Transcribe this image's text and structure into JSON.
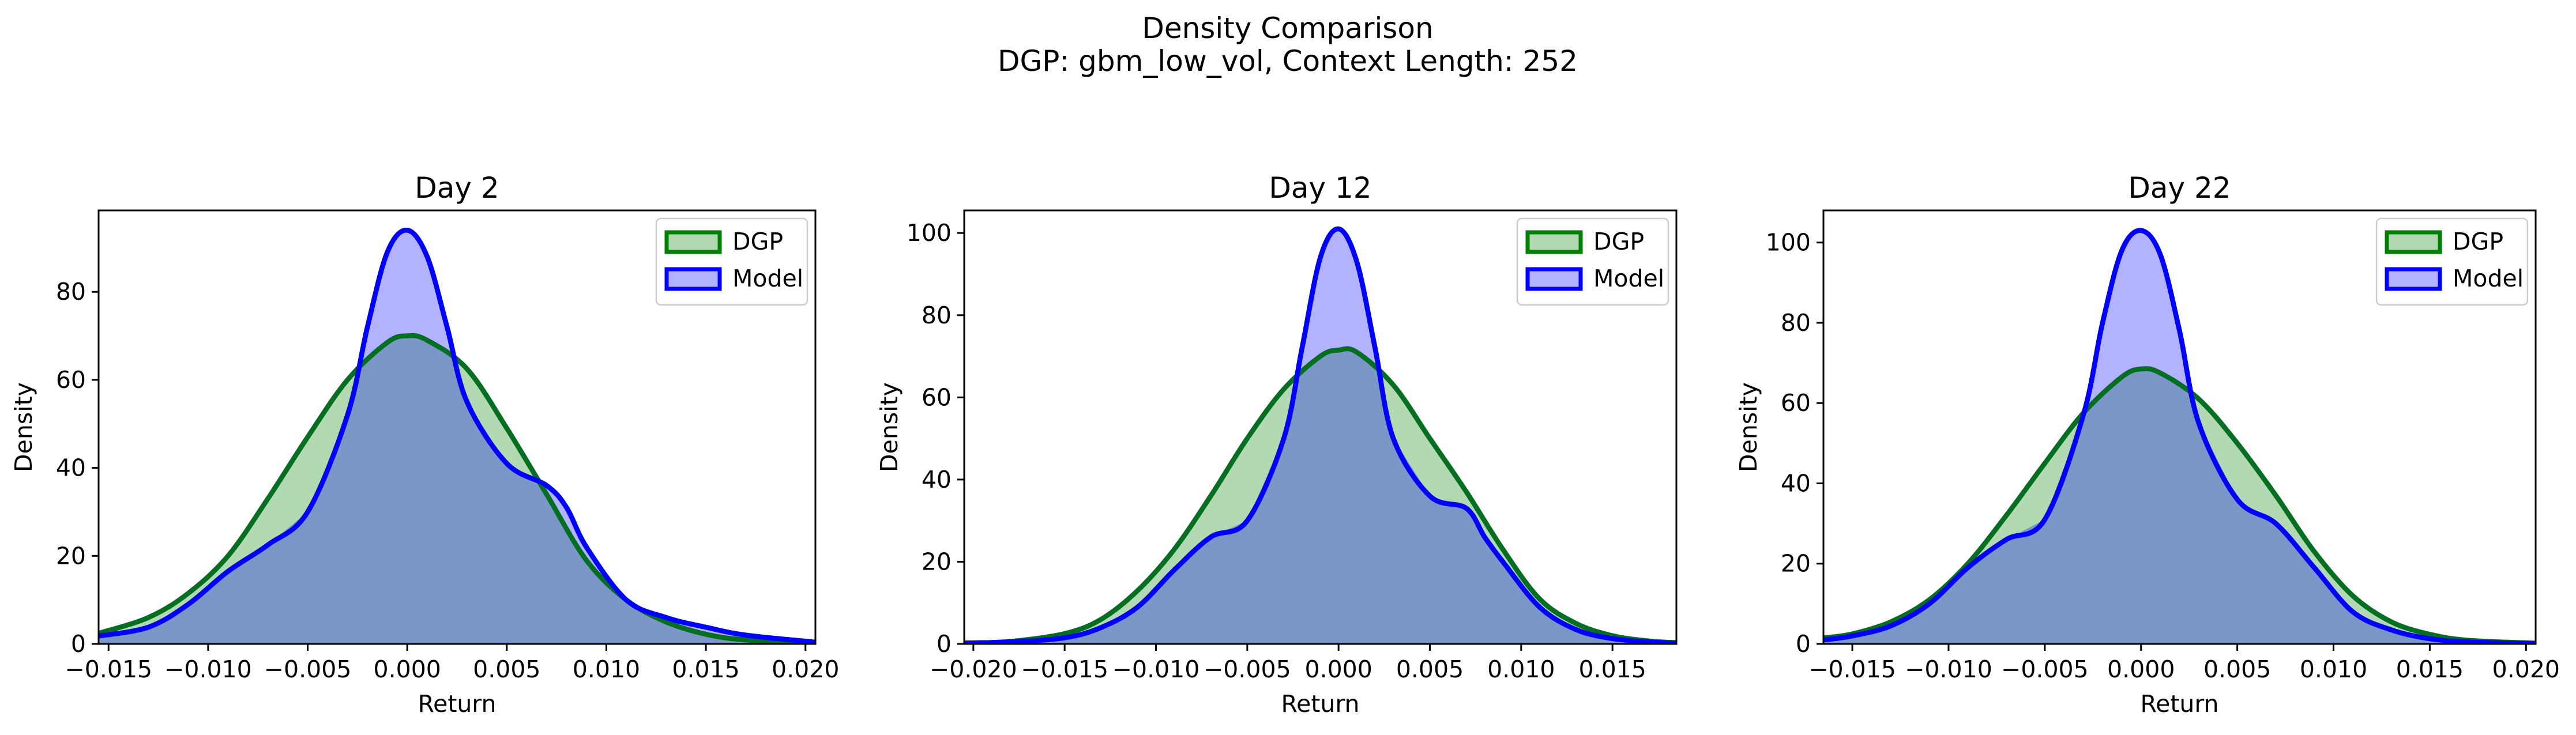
{
  "figure": {
    "suptitle_line1": "Density Comparison",
    "suptitle_line2": "DGP: gbm_low_vol, Context Length: 252"
  },
  "colors": {
    "dgp": "#008000",
    "model": "#0000ff",
    "overlap": "#7b97c7"
  },
  "chart_data": [
    {
      "type": "area",
      "title": "Day 2",
      "xlabel": "Return",
      "ylabel": "Density",
      "xlim": [
        -0.0155,
        0.0205
      ],
      "ylim": [
        0,
        98.5
      ],
      "xticks": [
        -0.015,
        -0.01,
        -0.005,
        0.0,
        0.005,
        0.01,
        0.015,
        0.02
      ],
      "xtick_labels": [
        "−0.015",
        "−0.010",
        "−0.005",
        "0.000",
        "0.005",
        "0.010",
        "0.015",
        "0.020"
      ],
      "yticks": [
        0,
        20,
        40,
        60,
        80
      ],
      "legend_position": "upper right",
      "series": [
        {
          "name": "DGP",
          "color": "#008000",
          "x": [
            -0.0155,
            -0.013,
            -0.011,
            -0.009,
            -0.007,
            -0.005,
            -0.003,
            -0.001,
            0.0,
            0.001,
            0.003,
            0.005,
            0.007,
            0.009,
            0.011,
            0.013,
            0.015,
            0.017,
            0.0205
          ],
          "y": [
            2.4,
            6,
            11.5,
            20,
            33,
            47,
            60,
            68.5,
            70,
            69,
            62.5,
            49,
            34,
            19,
            10,
            5,
            2.2,
            0.9,
            0.1
          ]
        },
        {
          "name": "Model",
          "color": "#0000ff",
          "x": [
            -0.0155,
            -0.013,
            -0.011,
            -0.009,
            -0.007,
            -0.005,
            -0.003,
            -0.002,
            -0.001,
            0.0,
            0.001,
            0.002,
            0.003,
            0.005,
            0.007,
            0.008,
            0.009,
            0.011,
            0.013,
            0.015,
            0.017,
            0.0205
          ],
          "y": [
            1.8,
            3.8,
            9,
            16.5,
            22.5,
            30,
            52,
            72,
            89,
            94,
            88,
            72,
            55,
            41,
            36,
            31,
            22,
            10,
            6,
            3.8,
            2,
            0.4
          ]
        }
      ]
    },
    {
      "type": "area",
      "title": "Day 12",
      "xlabel": "Return",
      "ylabel": "Density",
      "xlim": [
        -0.0205,
        0.0185
      ],
      "ylim": [
        0,
        105.5
      ],
      "xticks": [
        -0.02,
        -0.015,
        -0.01,
        -0.005,
        0.0,
        0.005,
        0.01,
        0.015
      ],
      "xtick_labels": [
        "−0.020",
        "−0.015",
        "−0.010",
        "−0.005",
        "0.000",
        "0.005",
        "0.010",
        "0.015"
      ],
      "yticks": [
        0,
        20,
        40,
        60,
        80,
        100
      ],
      "legend_position": "upper right",
      "series": [
        {
          "name": "DGP",
          "color": "#008000",
          "x": [
            -0.0205,
            -0.018,
            -0.015,
            -0.013,
            -0.011,
            -0.009,
            -0.007,
            -0.005,
            -0.003,
            -0.001,
            0.0,
            0.001,
            0.003,
            0.005,
            0.007,
            0.009,
            0.011,
            0.013,
            0.015,
            0.017,
            0.0185
          ],
          "y": [
            0.2,
            0.6,
            2.5,
            6,
            13,
            23,
            36,
            50,
            62,
            70,
            71.5,
            71,
            63,
            50,
            37,
            23,
            11,
            5,
            2,
            0.7,
            0.3
          ]
        },
        {
          "name": "Model",
          "color": "#0000ff",
          "x": [
            -0.0205,
            -0.018,
            -0.015,
            -0.013,
            -0.011,
            -0.009,
            -0.007,
            -0.005,
            -0.003,
            -0.002,
            -0.001,
            0.0,
            0.001,
            0.002,
            0.003,
            0.005,
            0.007,
            0.008,
            0.009,
            0.011,
            0.013,
            0.015,
            0.017,
            0.0185
          ],
          "y": [
            0.2,
            0.5,
            1.5,
            4,
            9,
            18,
            26,
            30,
            50,
            72,
            94,
            101,
            93,
            72,
            50,
            36,
            33,
            26,
            20,
            9,
            3.5,
            1.3,
            0.5,
            0.2
          ]
        }
      ]
    },
    {
      "type": "area",
      "title": "Day 22",
      "xlabel": "Return",
      "ylabel": "Density",
      "xlim": [
        -0.0165,
        0.0205
      ],
      "ylim": [
        0,
        108
      ],
      "xticks": [
        -0.015,
        -0.01,
        -0.005,
        0.0,
        0.005,
        0.01,
        0.015,
        0.02
      ],
      "xtick_labels": [
        "−0.015",
        "−0.010",
        "−0.005",
        "0.000",
        "0.005",
        "0.010",
        "0.015",
        "0.020"
      ],
      "yticks": [
        0,
        20,
        40,
        60,
        80,
        100
      ],
      "legend_position": "upper right",
      "series": [
        {
          "name": "DGP",
          "color": "#008000",
          "x": [
            -0.0165,
            -0.015,
            -0.013,
            -0.011,
            -0.009,
            -0.007,
            -0.005,
            -0.003,
            -0.001,
            0.0,
            0.001,
            0.003,
            0.005,
            0.007,
            0.009,
            0.011,
            0.013,
            0.015,
            0.017,
            0.0205
          ],
          "y": [
            1.5,
            2.5,
            5.5,
            11,
            20,
            32,
            45,
            57.5,
            66.5,
            68.5,
            67.5,
            61,
            50,
            37,
            23,
            12,
            5.5,
            2.4,
            0.9,
            0.2
          ]
        },
        {
          "name": "Model",
          "color": "#0000ff",
          "x": [
            -0.0165,
            -0.015,
            -0.013,
            -0.011,
            -0.009,
            -0.007,
            -0.005,
            -0.003,
            -0.002,
            -0.001,
            0.0,
            0.001,
            0.002,
            0.003,
            0.005,
            0.007,
            0.009,
            0.011,
            0.013,
            0.015,
            0.017,
            0.0205
          ],
          "y": [
            1,
            2,
            4.5,
            10,
            19,
            26,
            31,
            57,
            80,
            98,
            103,
            97,
            78,
            55,
            36,
            30,
            19,
            8,
            3.5,
            1.3,
            0.5,
            0.1
          ]
        }
      ]
    }
  ]
}
